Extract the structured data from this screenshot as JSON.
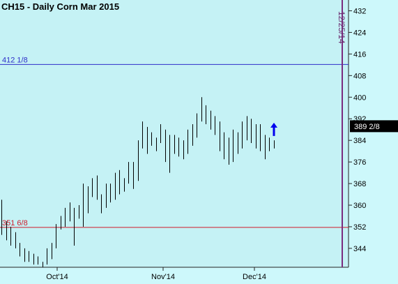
{
  "chart_data": {
    "type": "ohlc",
    "title": "CH15 - Daily  Corn Mar 2015",
    "y_axis": {
      "min": 337,
      "max": 436,
      "ticks": [
        344,
        352,
        360,
        368,
        376,
        384,
        392,
        400,
        408,
        416,
        424,
        432
      ],
      "side": "right"
    },
    "x_ticks": [
      "Oct'14",
      "Nov'14",
      "Dec'14"
    ],
    "last_price": {
      "label": "389 2/8",
      "value": 389.25
    },
    "marker_date": "12/25/14",
    "hlines": [
      {
        "label": "412 1/8",
        "value": 412.125,
        "color": "#2e2ec8"
      },
      {
        "label": "351 6/8",
        "value": 351.75,
        "color": "#d01a2a"
      }
    ],
    "arrow": {
      "direction": "up",
      "color": "#0000ee"
    },
    "bars": [
      {
        "h": 362,
        "l": 349
      },
      {
        "h": 354,
        "l": 347
      },
      {
        "h": 352,
        "l": 345
      },
      {
        "h": 350,
        "l": 344
      },
      {
        "h": 346,
        "l": 341
      },
      {
        "h": 344,
        "l": 339
      },
      {
        "h": 343,
        "l": 339
      },
      {
        "h": 342,
        "l": 338
      },
      {
        "h": 341,
        "l": 338
      },
      {
        "h": 339,
        "l": 337
      },
      {
        "h": 344,
        "l": 338
      },
      {
        "h": 346,
        "l": 340
      },
      {
        "h": 353,
        "l": 344
      },
      {
        "h": 356,
        "l": 351
      },
      {
        "h": 359,
        "l": 352
      },
      {
        "h": 361,
        "l": 354
      },
      {
        "h": 359,
        "l": 345
      },
      {
        "h": 360,
        "l": 355
      },
      {
        "h": 368,
        "l": 352
      },
      {
        "h": 367,
        "l": 357
      },
      {
        "h": 370,
        "l": 363
      },
      {
        "h": 371,
        "l": 362
      },
      {
        "h": 364,
        "l": 357
      },
      {
        "h": 368,
        "l": 359
      },
      {
        "h": 368,
        "l": 361
      },
      {
        "h": 372,
        "l": 362
      },
      {
        "h": 373,
        "l": 364
      },
      {
        "h": 370,
        "l": 365
      },
      {
        "h": 376,
        "l": 368
      },
      {
        "h": 376,
        "l": 366
      },
      {
        "h": 384,
        "l": 369
      },
      {
        "h": 391,
        "l": 381
      },
      {
        "h": 389,
        "l": 379
      },
      {
        "h": 387,
        "l": 382
      },
      {
        "h": 385,
        "l": 380
      },
      {
        "h": 390,
        "l": 383
      },
      {
        "h": 388,
        "l": 376
      },
      {
        "h": 386,
        "l": 372
      },
      {
        "h": 386,
        "l": 379
      },
      {
        "h": 385,
        "l": 378
      },
      {
        "h": 384,
        "l": 377
      },
      {
        "h": 388,
        "l": 379
      },
      {
        "h": 390,
        "l": 382
      },
      {
        "h": 394,
        "l": 385
      },
      {
        "h": 400,
        "l": 391
      },
      {
        "h": 397,
        "l": 390
      },
      {
        "h": 395,
        "l": 388
      },
      {
        "h": 393,
        "l": 386
      },
      {
        "h": 391,
        "l": 380
      },
      {
        "h": 387,
        "l": 377
      },
      {
        "h": 385,
        "l": 375
      },
      {
        "h": 388,
        "l": 376
      },
      {
        "h": 387,
        "l": 379
      },
      {
        "h": 391,
        "l": 381
      },
      {
        "h": 393,
        "l": 384
      },
      {
        "h": 392,
        "l": 383
      },
      {
        "h": 390,
        "l": 381
      },
      {
        "h": 390,
        "l": 380
      },
      {
        "h": 386,
        "l": 377
      },
      {
        "h": 385,
        "l": 380
      },
      {
        "h": 384,
        "l": 381
      }
    ]
  }
}
